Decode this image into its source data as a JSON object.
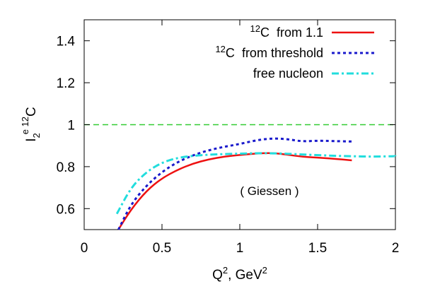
{
  "chart_data": {
    "type": "line",
    "title": "",
    "xlabel": {
      "base": "Q",
      "sup": "2",
      "mid": ", GeV",
      "sup2": "2"
    },
    "ylabel": {
      "base": "I",
      "sub": "2",
      "sup": "e 12",
      "tail": "C"
    },
    "xlim": [
      0,
      2
    ],
    "ylim": [
      0.5,
      1.5
    ],
    "xticks": [
      {
        "value": 0,
        "label": "0"
      },
      {
        "value": 0.5,
        "label": "0.5"
      },
      {
        "value": 1,
        "label": "1"
      },
      {
        "value": 1.5,
        "label": "1.5"
      },
      {
        "value": 2,
        "label": "2"
      }
    ],
    "yticks": [
      {
        "value": 0.6,
        "label": "0.6"
      },
      {
        "value": 0.8,
        "label": "0.8"
      },
      {
        "value": 1.0,
        "label": "1"
      },
      {
        "value": 1.2,
        "label": "1.2"
      },
      {
        "value": 1.4,
        "label": "1.4"
      }
    ],
    "grid": false,
    "legend_position": "top-right",
    "annotation": "( Giessen )",
    "reference_line": {
      "y": 1.0,
      "color": "#33cc33",
      "style": "dashed"
    },
    "series": [
      {
        "name": "from 1.1",
        "name_prefix": "12",
        "name_element": "C",
        "color": "#ee1111",
        "style": "solid",
        "x": [
          0.22,
          0.3,
          0.4,
          0.5,
          0.6,
          0.7,
          0.8,
          0.9,
          1.0,
          1.1,
          1.2,
          1.3,
          1.4,
          1.5,
          1.6,
          1.72
        ],
        "y": [
          0.5,
          0.595,
          0.685,
          0.745,
          0.785,
          0.815,
          0.835,
          0.848,
          0.856,
          0.862,
          0.866,
          0.858,
          0.847,
          0.843,
          0.838,
          0.83
        ]
      },
      {
        "name": "from threshold",
        "name_prefix": "12",
        "name_element": "C",
        "color": "#1a1acc",
        "style": "dotted",
        "x": [
          0.22,
          0.3,
          0.4,
          0.5,
          0.6,
          0.7,
          0.8,
          0.9,
          1.0,
          1.1,
          1.2,
          1.3,
          1.4,
          1.5,
          1.6,
          1.72
        ],
        "y": [
          0.5,
          0.62,
          0.71,
          0.775,
          0.822,
          0.855,
          0.878,
          0.895,
          0.908,
          0.925,
          0.935,
          0.932,
          0.92,
          0.924,
          0.922,
          0.92
        ]
      },
      {
        "name": "free nucleon",
        "name_prefix": "",
        "name_element": "",
        "color": "#22dddd",
        "style": "dash-dot",
        "x": [
          0.21,
          0.3,
          0.4,
          0.5,
          0.6,
          0.7,
          0.8,
          0.9,
          1.0,
          1.1,
          1.2,
          1.3,
          1.4,
          1.5,
          1.6,
          1.7,
          1.8,
          1.9,
          2.0
        ],
        "y": [
          0.575,
          0.7,
          0.775,
          0.82,
          0.842,
          0.852,
          0.857,
          0.86,
          0.862,
          0.864,
          0.864,
          0.862,
          0.858,
          0.855,
          0.852,
          0.85,
          0.848,
          0.848,
          0.85
        ]
      }
    ]
  }
}
